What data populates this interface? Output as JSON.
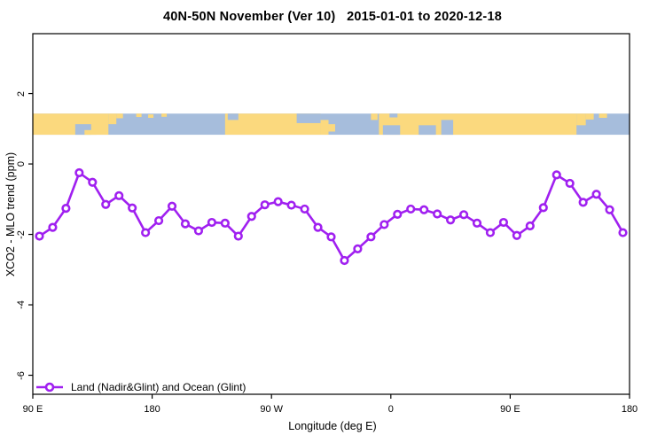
{
  "title": "40N-50N November (Ver 10)   2015-01-01 to 2020-12-18",
  "axes": {
    "x": {
      "title": "Longitude (deg E)",
      "ticks": [
        {
          "lon": 90,
          "label": "90 E"
        },
        {
          "lon": 180,
          "label": "180"
        },
        {
          "lon": 270,
          "label": "90 W"
        },
        {
          "lon": 360,
          "label": "0"
        },
        {
          "lon": 450,
          "label": "90 E"
        },
        {
          "lon": 540,
          "label": "180"
        }
      ]
    },
    "y": {
      "title": "XCO2 - MLO trend (ppm)",
      "ticks": [
        {
          "value": 2,
          "label": "2"
        },
        {
          "value": 0,
          "label": "0"
        },
        {
          "value": -2,
          "label": "-2"
        },
        {
          "value": -4,
          "label": "-4"
        },
        {
          "value": -6,
          "label": "-6"
        }
      ]
    }
  },
  "legend": {
    "label": "Land (Nadir&Glint) and Ocean (Glint)"
  },
  "colors": {
    "series": "#A020F0",
    "marker_fill": "#FFFFFF",
    "land": "#FBD97E",
    "ocean": "#A6BDDC",
    "axis": "#000000",
    "background": "#FFFFFF"
  },
  "chart_data": {
    "type": "line",
    "title": "40N-50N November (Ver 10)   2015-01-01 to 2020-12-18",
    "xlabel": "Longitude (deg E)",
    "ylabel": "XCO2 - MLO trend (ppm)",
    "xlim": [
      90,
      540
    ],
    "ylim": [
      -6.54,
      3.7
    ],
    "x_axis_note": "longitude wraps around the globe: 90E -> 180 -> 90W -> 0 -> 90E -> 180",
    "grid": false,
    "legend_position": "bottom-left",
    "series": [
      {
        "name": "Land (Nadir&Glint) and Ocean (Glint)",
        "color": "#A020F0",
        "marker": "open-circle",
        "x": [
          95,
          105,
          115,
          125,
          135,
          145,
          155,
          165,
          175,
          185,
          195,
          205,
          215,
          225,
          235,
          245,
          255,
          265,
          275,
          285,
          295,
          305,
          315,
          325,
          335,
          345,
          355,
          365,
          375,
          385,
          395,
          405,
          415,
          425,
          435,
          445,
          455,
          465,
          475,
          485,
          495,
          505,
          515,
          525,
          535
        ],
        "y": [
          -2.05,
          -1.8,
          -1.26,
          -0.25,
          -0.52,
          -1.15,
          -0.9,
          -1.25,
          -1.95,
          -1.61,
          -1.2,
          -1.7,
          -1.9,
          -1.66,
          -1.68,
          -2.05,
          -1.49,
          -1.16,
          -1.07,
          -1.17,
          -1.28,
          -1.8,
          -2.07,
          -2.74,
          -2.41,
          -2.07,
          -1.72,
          -1.43,
          -1.28,
          -1.3,
          -1.42,
          -1.59,
          -1.44,
          -1.68,
          -1.95,
          -1.66,
          -2.03,
          -1.76,
          -1.24,
          -0.31,
          -0.55,
          -1.09,
          -0.86,
          -1.3,
          -1.95
        ]
      }
    ],
    "map_strip": {
      "description": "land/ocean map band for the 40N-50N latitude zone",
      "value_range": [
        0.83,
        1.43
      ],
      "land_patches": [
        {
          "from": 90,
          "to": 147,
          "y0": 0,
          "y1": 1
        },
        {
          "from": 147,
          "to": 153,
          "y0": 0,
          "y1": 0.5
        },
        {
          "from": 153,
          "to": 158,
          "y0": 0,
          "y1": 0.22
        },
        {
          "from": 168,
          "to": 172,
          "y0": 0,
          "y1": 0.16
        },
        {
          "from": 177,
          "to": 181,
          "y0": 0.04,
          "y1": 0.2
        },
        {
          "from": 187,
          "to": 191,
          "y0": 0,
          "y1": 0.15
        },
        {
          "from": 235,
          "to": 307,
          "y0": 0,
          "y1": 1
        },
        {
          "from": 307,
          "to": 313,
          "y0": 0.3,
          "y1": 1
        },
        {
          "from": 345,
          "to": 350,
          "y0": 0,
          "y1": 0.3
        },
        {
          "from": 351,
          "to": 500,
          "y0": 0,
          "y1": 1
        },
        {
          "from": 500,
          "to": 507,
          "y0": 0,
          "y1": 0.55
        },
        {
          "from": 507,
          "to": 513,
          "y0": 0,
          "y1": 0.28
        },
        {
          "from": 517,
          "to": 523,
          "y0": 0,
          "y1": 0.2
        }
      ],
      "ocean_patches": [
        {
          "from": 122,
          "to": 134,
          "y0": 0.5,
          "y1": 1
        },
        {
          "from": 237,
          "to": 245,
          "y0": 0,
          "y1": 0.3
        },
        {
          "from": 289,
          "to": 307,
          "y0": 0,
          "y1": 0.45
        },
        {
          "from": 354,
          "to": 367,
          "y0": 0.55,
          "y1": 1
        },
        {
          "from": 359,
          "to": 365,
          "y0": 0,
          "y1": 0.18
        },
        {
          "from": 381,
          "to": 394,
          "y0": 0.55,
          "y1": 1
        },
        {
          "from": 398,
          "to": 407,
          "y0": 0.3,
          "y1": 1
        }
      ],
      "island_patches": [
        {
          "from": 129,
          "to": 138,
          "y0": 0.78,
          "y1": 1
        },
        {
          "from": 140,
          "to": 144,
          "y0": 0.4,
          "y1": 0.62
        },
        {
          "from": 313,
          "to": 318,
          "y0": 0.5,
          "y1": 0.85
        }
      ]
    }
  }
}
